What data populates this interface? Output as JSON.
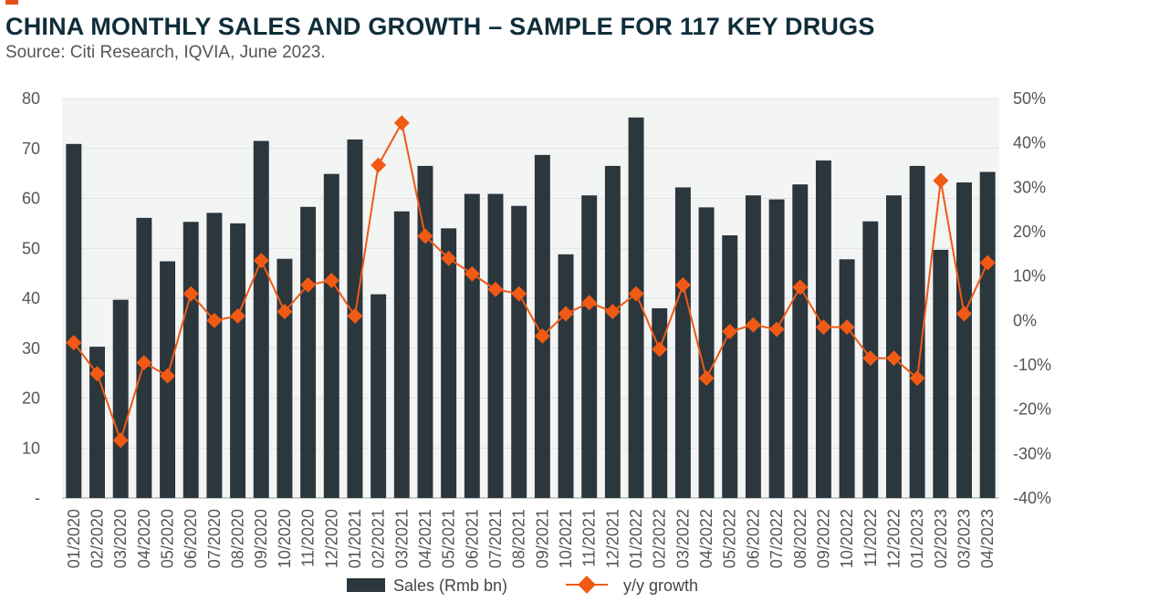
{
  "header": {
    "title": "CHINA MONTHLY SALES AND GROWTH – SAMPLE FOR 117 KEY DRUGS",
    "subtitle": "Source: Citi Research, IQVIA, June 2023."
  },
  "colors": {
    "bar": "#2b363d",
    "line": "#f05a14",
    "plot_bg": "#f3f4f4",
    "grid": "#e2e2e2",
    "accent": "#e8501a",
    "title": "#0f2d3a"
  },
  "chart_data": {
    "type": "bar",
    "categories": [
      "01/2020",
      "02/2020",
      "03/2020",
      "04/2020",
      "05/2020",
      "06/2020",
      "07/2020",
      "08/2020",
      "09/2020",
      "10/2020",
      "11/2020",
      "12/2020",
      "01/2021",
      "02/2021",
      "03/2021",
      "04/2021",
      "05/2021",
      "06/2021",
      "07/2021",
      "08/2021",
      "09/2021",
      "10/2021",
      "11/2021",
      "12/2021",
      "01/2022",
      "02/2022",
      "03/2022",
      "04/2022",
      "05/2022",
      "06/2022",
      "07/2022",
      "08/2022",
      "09/2022",
      "10/2022",
      "11/2022",
      "12/2022",
      "01/2023",
      "02/2023",
      "03/2023",
      "04/2023"
    ],
    "series": [
      {
        "name": "Sales (Rmb bn)",
        "type": "bar",
        "axis": "left",
        "values": [
          70.9,
          30.3,
          39.7,
          56.1,
          47.4,
          55.3,
          57.1,
          55.0,
          71.5,
          47.9,
          58.3,
          64.9,
          71.8,
          40.8,
          57.4,
          66.5,
          54.0,
          60.9,
          60.9,
          58.5,
          68.7,
          48.8,
          60.6,
          66.5,
          76.2,
          38.0,
          62.2,
          58.2,
          52.6,
          60.6,
          59.8,
          62.8,
          67.6,
          47.8,
          55.4,
          60.6,
          66.5,
          49.7,
          63.2,
          65.3
        ]
      },
      {
        "name": "y/y growth",
        "type": "line",
        "axis": "right",
        "values": [
          -5,
          -12,
          -27,
          -9.5,
          -12.5,
          6,
          0,
          1,
          13.5,
          2,
          8,
          9,
          1,
          35,
          44.5,
          19,
          14,
          10.5,
          7,
          6,
          -3.5,
          1.5,
          4,
          2,
          6,
          -6.5,
          8,
          -13,
          -2.5,
          -1,
          -2,
          7.5,
          -1.5,
          -1.5,
          -8.5,
          -8.5,
          -13,
          31.5,
          1.5,
          13
        ]
      }
    ],
    "y_left": {
      "ylim": [
        0,
        80
      ],
      "ticks": [
        "-",
        "10",
        "20",
        "30",
        "40",
        "50",
        "60",
        "70",
        "80"
      ]
    },
    "y_right": {
      "ylim": [
        -40,
        50
      ],
      "ticks": [
        "-40%",
        "-30%",
        "-20%",
        "-10%",
        "0%",
        "10%",
        "20%",
        "30%",
        "40%",
        "50%"
      ]
    },
    "grid": true,
    "legend_position": "bottom-center"
  }
}
